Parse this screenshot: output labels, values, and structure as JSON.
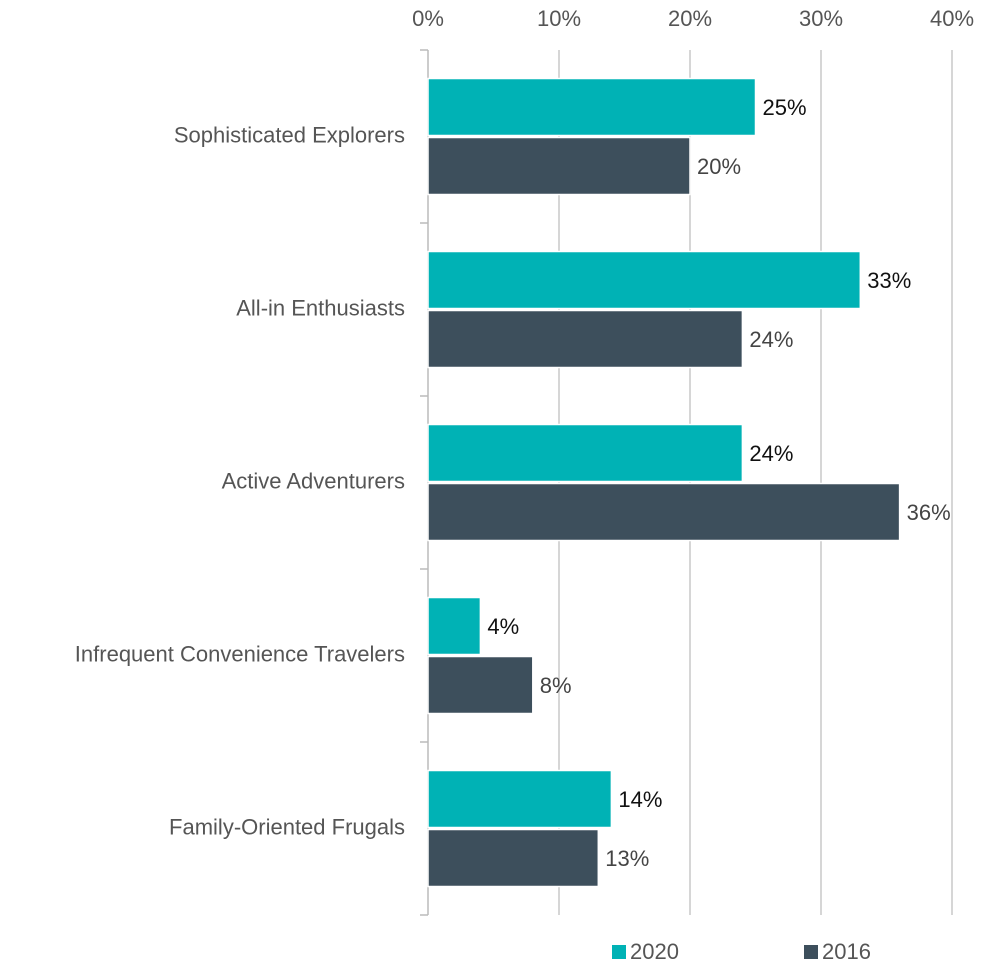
{
  "chart_data": {
    "type": "hbar",
    "categories": [
      "Sophisticated Explorers",
      "All-in Enthusiasts",
      "Active Adventurers",
      "Infrequent Convenience Travelers",
      "Family-Oriented Frugals"
    ],
    "series": [
      {
        "name": "2020",
        "color": "#00b2b5",
        "values": [
          25,
          33,
          24,
          4,
          14
        ],
        "value_labels": [
          "25%",
          "33%",
          "24%",
          "4%",
          "14%"
        ]
      },
      {
        "name": "2016",
        "color": "#3d4f5c",
        "values": [
          20,
          24,
          36,
          8,
          13
        ],
        "value_labels": [
          "20%",
          "24%",
          "36%",
          "8%",
          "13%"
        ]
      }
    ],
    "xlim": [
      0,
      40
    ],
    "xticks": [
      {
        "value": 0,
        "label": "0%"
      },
      {
        "value": 10,
        "label": "10%"
      },
      {
        "value": 20,
        "label": "20%"
      },
      {
        "value": 30,
        "label": "30%"
      },
      {
        "value": 40,
        "label": "40%"
      }
    ],
    "grid": true
  }
}
